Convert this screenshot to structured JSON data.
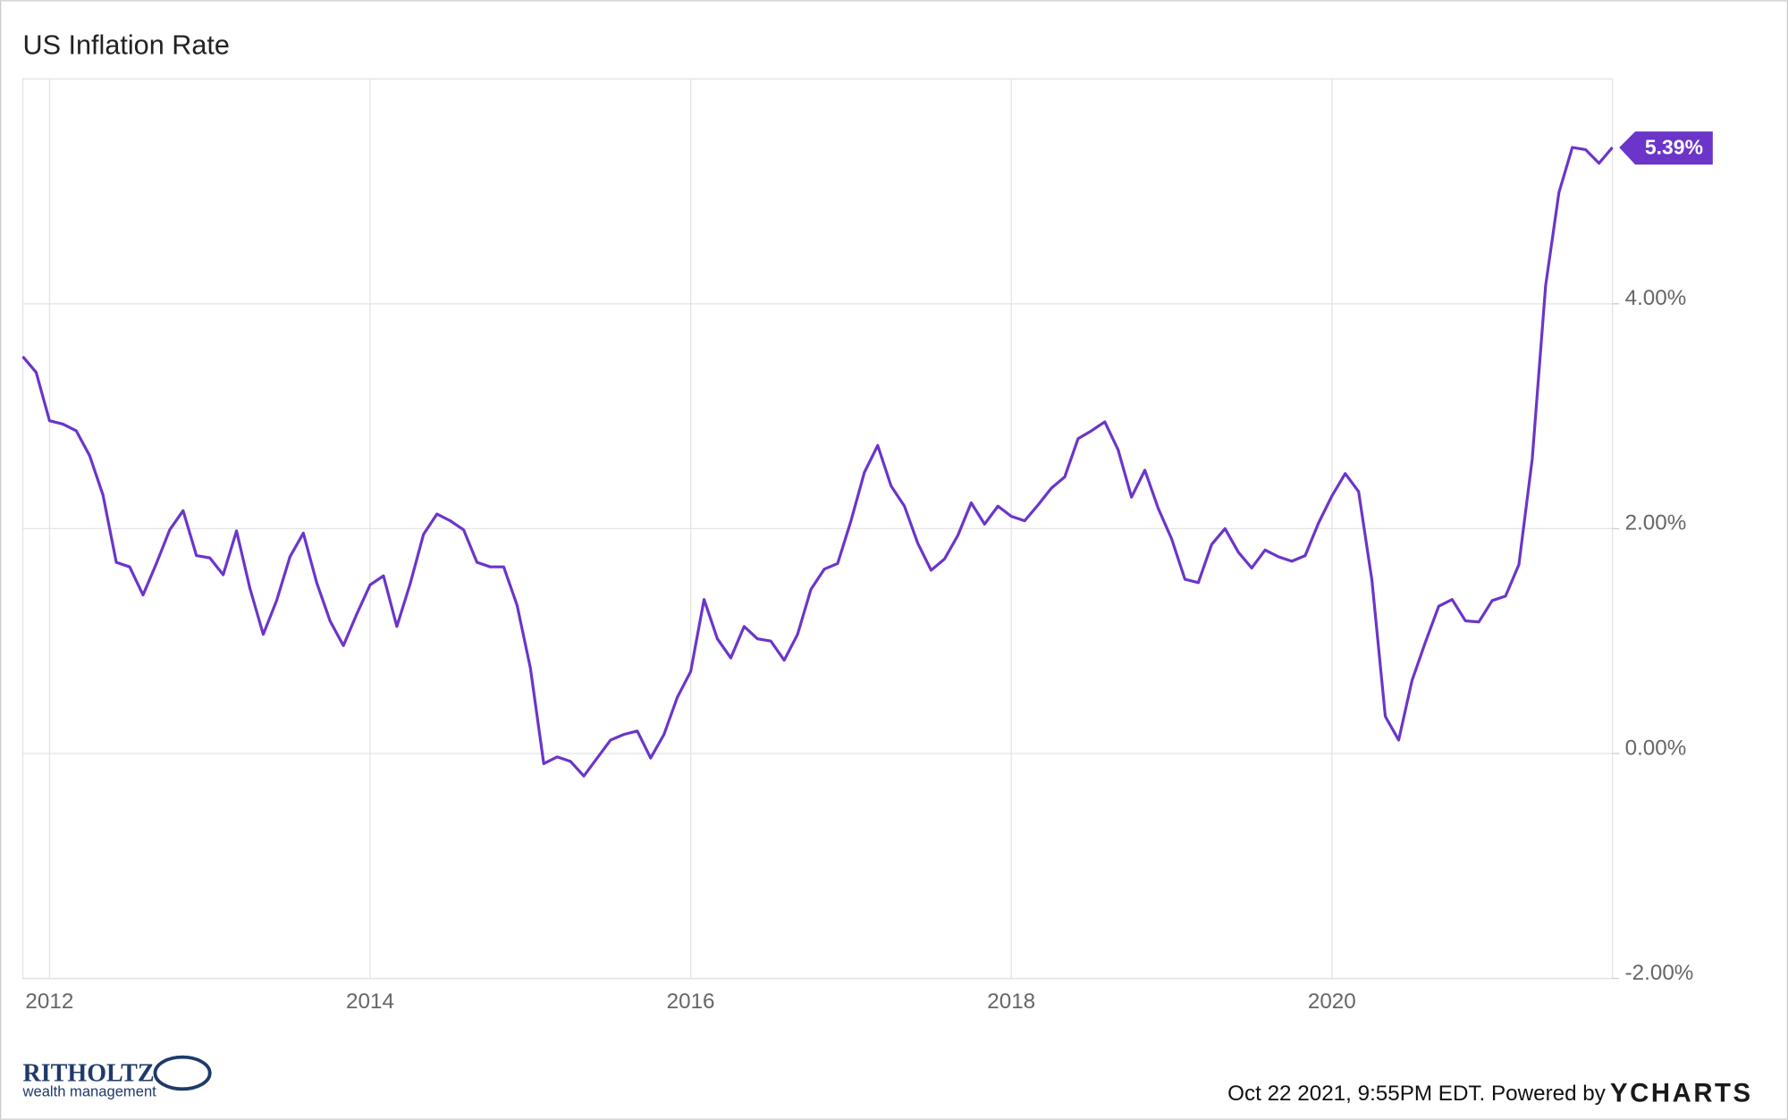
{
  "chart_data": {
    "type": "line",
    "title": "US Inflation Rate",
    "x": [
      "2011-10",
      "2011-11",
      "2011-12",
      "2012-01",
      "2012-02",
      "2012-03",
      "2012-04",
      "2012-05",
      "2012-06",
      "2012-07",
      "2012-08",
      "2012-09",
      "2012-10",
      "2012-11",
      "2012-12",
      "2013-01",
      "2013-02",
      "2013-03",
      "2013-04",
      "2013-05",
      "2013-06",
      "2013-07",
      "2013-08",
      "2013-09",
      "2013-10",
      "2013-11",
      "2013-12",
      "2014-01",
      "2014-02",
      "2014-03",
      "2014-04",
      "2014-05",
      "2014-06",
      "2014-07",
      "2014-08",
      "2014-09",
      "2014-10",
      "2014-11",
      "2014-12",
      "2015-01",
      "2015-02",
      "2015-03",
      "2015-04",
      "2015-05",
      "2015-06",
      "2015-07",
      "2015-08",
      "2015-09",
      "2015-10",
      "2015-11",
      "2015-12",
      "2016-01",
      "2016-02",
      "2016-03",
      "2016-04",
      "2016-05",
      "2016-06",
      "2016-07",
      "2016-08",
      "2016-09",
      "2016-10",
      "2016-11",
      "2016-12",
      "2017-01",
      "2017-02",
      "2017-03",
      "2017-04",
      "2017-05",
      "2017-06",
      "2017-07",
      "2017-08",
      "2017-09",
      "2017-10",
      "2017-11",
      "2017-12",
      "2018-01",
      "2018-02",
      "2018-03",
      "2018-04",
      "2018-05",
      "2018-06",
      "2018-07",
      "2018-08",
      "2018-09",
      "2018-10",
      "2018-11",
      "2018-12",
      "2019-01",
      "2019-02",
      "2019-03",
      "2019-04",
      "2019-05",
      "2019-06",
      "2019-07",
      "2019-08",
      "2019-09",
      "2019-10",
      "2019-11",
      "2019-12",
      "2020-01",
      "2020-02",
      "2020-03",
      "2020-04",
      "2020-05",
      "2020-06",
      "2020-07",
      "2020-08",
      "2020-09",
      "2020-10",
      "2020-11",
      "2020-12",
      "2021-01",
      "2021-02",
      "2021-03",
      "2021-04",
      "2021-05",
      "2021-06",
      "2021-07",
      "2021-08",
      "2021-09"
    ],
    "series": [
      {
        "name": "US Inflation Rate",
        "color": "#6b35c9",
        "values": [
          3.53,
          3.39,
          2.96,
          2.93,
          2.87,
          2.65,
          2.3,
          1.7,
          1.66,
          1.41,
          1.69,
          1.99,
          2.16,
          1.76,
          1.74,
          1.59,
          1.98,
          1.47,
          1.06,
          1.36,
          1.75,
          1.96,
          1.52,
          1.18,
          0.96,
          1.24,
          1.5,
          1.58,
          1.13,
          1.51,
          1.95,
          2.13,
          2.07,
          1.99,
          1.7,
          1.66,
          1.66,
          1.32,
          0.76,
          -0.09,
          -0.03,
          -0.07,
          -0.2,
          -0.04,
          0.12,
          0.17,
          0.2,
          -0.04,
          0.17,
          0.5,
          0.73,
          1.37,
          1.02,
          0.85,
          1.13,
          1.02,
          1.0,
          0.83,
          1.06,
          1.46,
          1.64,
          1.69,
          2.07,
          2.5,
          2.74,
          2.38,
          2.2,
          1.87,
          1.63,
          1.73,
          1.94,
          2.23,
          2.04,
          2.2,
          2.11,
          2.07,
          2.21,
          2.36,
          2.46,
          2.8,
          2.87,
          2.95,
          2.7,
          2.28,
          2.52,
          2.18,
          1.91,
          1.55,
          1.52,
          1.86,
          2.0,
          1.79,
          1.65,
          1.81,
          1.75,
          1.71,
          1.76,
          2.05,
          2.29,
          2.49,
          2.33,
          1.54,
          0.33,
          0.12,
          0.65,
          0.99,
          1.31,
          1.37,
          1.18,
          1.17,
          1.36,
          1.4,
          1.68,
          2.62,
          4.16,
          4.99,
          5.39,
          5.37,
          5.25,
          5.39
        ],
        "value_labels": [
          null,
          null,
          null,
          null,
          null,
          null,
          null,
          null,
          null,
          null,
          null,
          null,
          null,
          null,
          null,
          null,
          null,
          null,
          null,
          null,
          null,
          null,
          null,
          null,
          null,
          null,
          null,
          null,
          null,
          null,
          null,
          null,
          null,
          null,
          null,
          null,
          null,
          null,
          null,
          null,
          null,
          null,
          null,
          null,
          null,
          null,
          null,
          null,
          null,
          null,
          null,
          null,
          null,
          null,
          null,
          null,
          null,
          null,
          null,
          null,
          null,
          null,
          null,
          null,
          null,
          null,
          null,
          null,
          null,
          null,
          null,
          null,
          null,
          null,
          null,
          null,
          null,
          null,
          null,
          null,
          null,
          null,
          null,
          null,
          null,
          null,
          null,
          null,
          null,
          null,
          null,
          null,
          null,
          null,
          null,
          null,
          null,
          null,
          null,
          null,
          null,
          null,
          null,
          null,
          null,
          null,
          null,
          null,
          null,
          null,
          null,
          null,
          null,
          null,
          null,
          null,
          null,
          null,
          null,
          "5.39%"
        ]
      }
    ],
    "xlim": [
      "2011-10",
      "2021-09"
    ],
    "xticks": [
      2012,
      2014,
      2016,
      2018,
      2020
    ],
    "ylim": [
      -2,
      6
    ],
    "yticks": [
      {
        "value": -2,
        "label": "-2.00%"
      },
      {
        "value": 0,
        "label": "0.00%"
      },
      {
        "value": 2,
        "label": "2.00%"
      },
      {
        "value": 4,
        "label": "4.00%"
      }
    ],
    "grid": true,
    "credit": "Oct 22 2021, 9:55PM EDT. Powered by",
    "brand": "YCHARTS",
    "logo_name": "RITHOLTZ",
    "logo_subtitle": "wealth management"
  }
}
